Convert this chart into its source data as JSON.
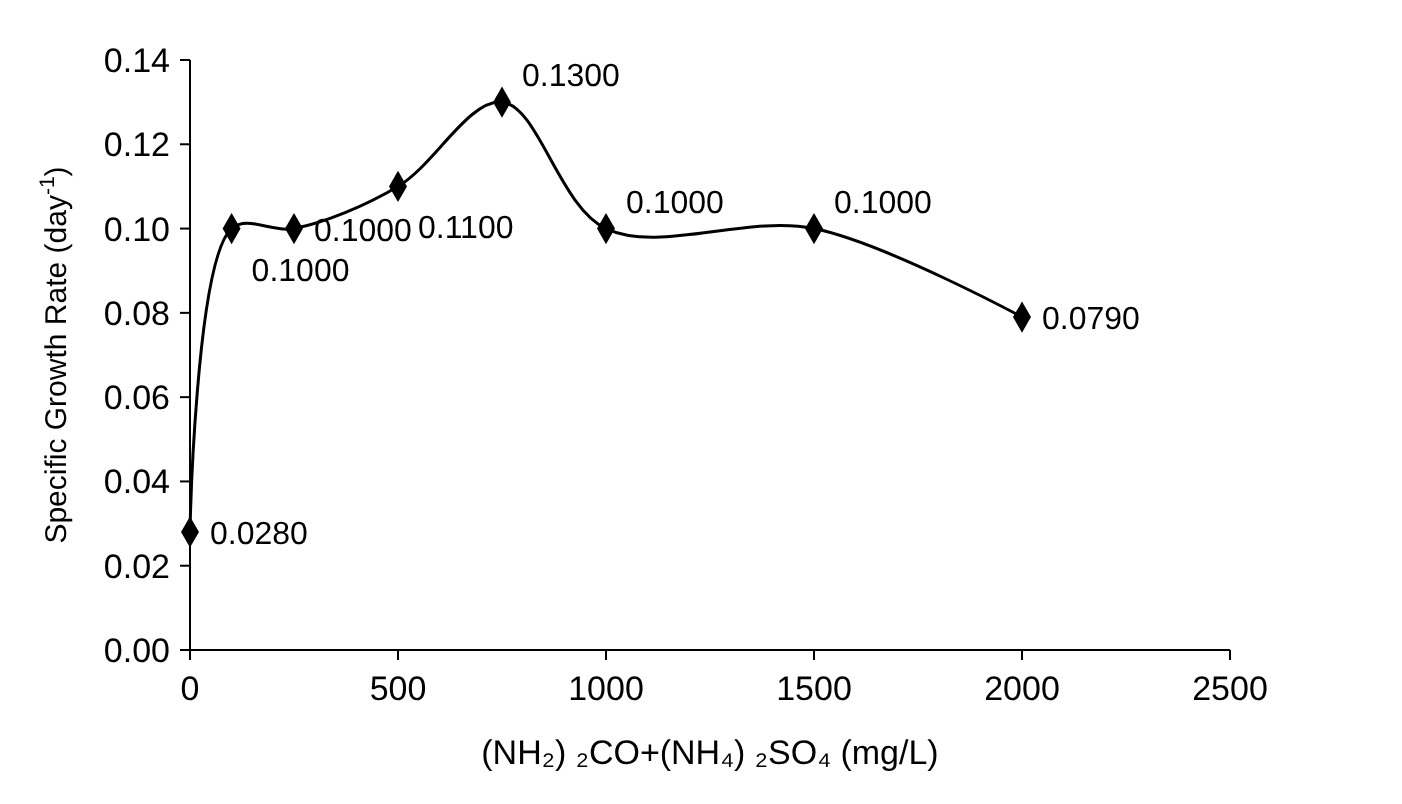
{
  "chart_data": {
    "type": "line",
    "xlabel": "(NH₂) ₂CO+(NH₄) ₂SO₄ (mg/L)",
    "ylabel": "Specific Growth Rate (day$^{-1}$)",
    "x": [
      0,
      100,
      250,
      500,
      750,
      1000,
      1500,
      2000
    ],
    "series": [
      {
        "color": "#000000",
        "values": [
          0.028,
          0.1,
          0.1,
          0.11,
          0.13,
          0.1,
          0.1,
          0.079
        ],
        "value_labels": [
          "0.0280",
          "0.1000",
          "0.1000",
          "0.1100",
          "0.1300",
          "0.1000",
          "0.1000",
          "0.0790"
        ]
      }
    ],
    "xlim": [
      0,
      2500
    ],
    "xticks": [
      0,
      500,
      1000,
      1500,
      2000,
      2500
    ],
    "ylim": [
      0,
      0.14
    ],
    "yticks": [
      {
        "value": 0,
        "label": "0.00"
      },
      {
        "value": 0.02,
        "label": "0.02"
      },
      {
        "value": 0.04,
        "label": "0.04"
      },
      {
        "value": 0.06,
        "label": "0.06"
      },
      {
        "value": 0.08,
        "label": "0.08"
      },
      {
        "value": 0.1,
        "label": "0.10"
      },
      {
        "value": 0.12,
        "label": "0.12"
      },
      {
        "value": 0.14,
        "label": "0.14"
      }
    ],
    "marker": "diamond",
    "line_style": "solid",
    "grid": false
  }
}
